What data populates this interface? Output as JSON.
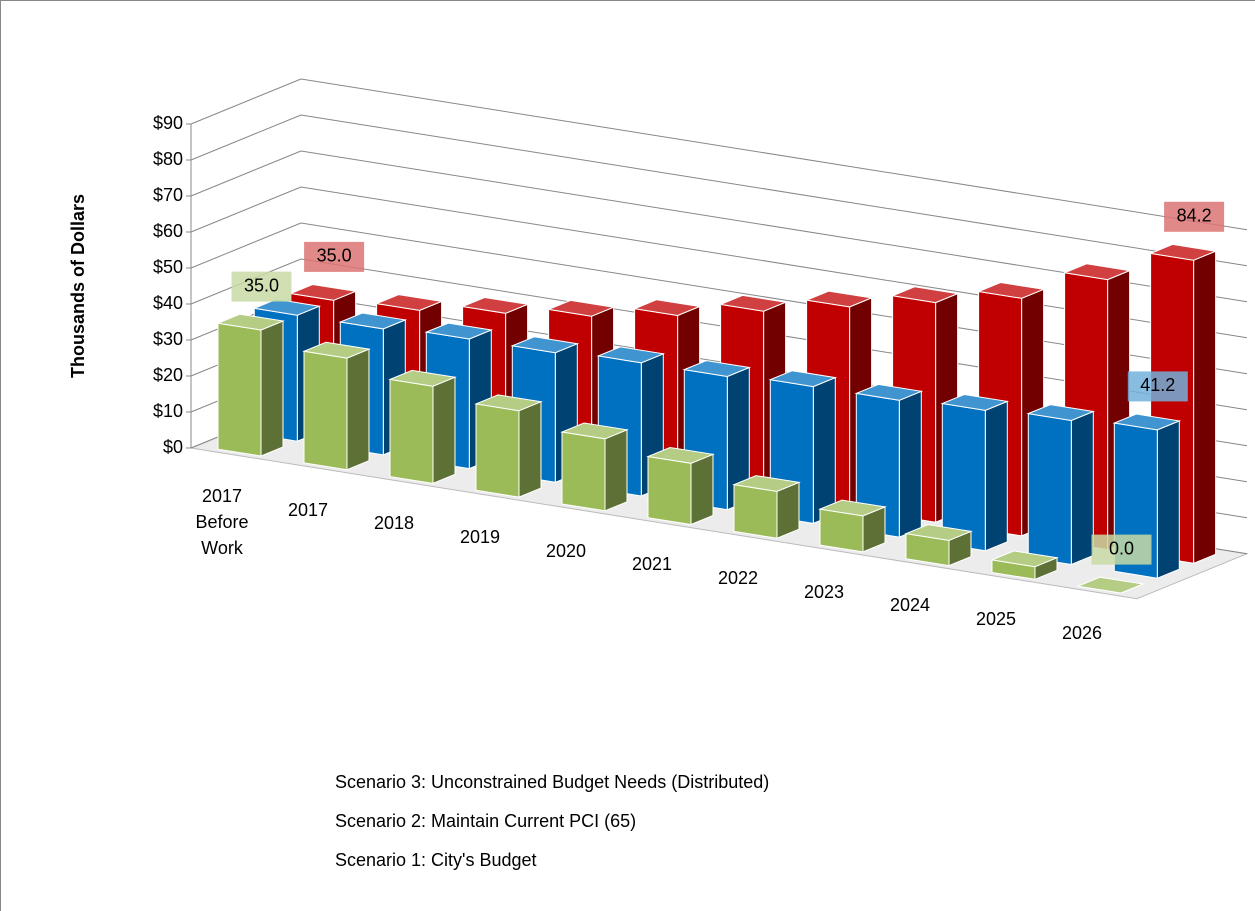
{
  "chart_data": {
    "type": "bar3d",
    "y_label": "Thousands of Dollars",
    "categories": [
      "2017 Before Work",
      "2017",
      "2018",
      "2019",
      "2020",
      "2021",
      "2022",
      "2023",
      "2024",
      "2025",
      "2026"
    ],
    "series": [
      {
        "name": "Scenario 3: Unconstrained Budget Needs (Distributed)",
        "color": "#9bbb59",
        "values": [
          35,
          31,
          27,
          24,
          20,
          17,
          13,
          10,
          7,
          3.5,
          0
        ],
        "value_labels": [
          "35.0",
          null,
          null,
          null,
          null,
          null,
          null,
          null,
          null,
          null,
          "0.0"
        ]
      },
      {
        "name": "Scenario 2: Maintain Current PCI (65)",
        "color": "#0070c0",
        "values": [
          35,
          35,
          36,
          36,
          37,
          37,
          38,
          38,
          39,
          40,
          41.2
        ],
        "value_labels": [
          null,
          null,
          null,
          null,
          null,
          null,
          null,
          null,
          null,
          null,
          "41.2"
        ]
      },
      {
        "name": "Scenario 1: City's Budget",
        "color": "#c00000",
        "values": [
          35,
          36,
          39,
          42,
          46,
          51,
          56,
          61,
          66,
          75,
          84.2
        ],
        "value_labels": [
          "35.0",
          null,
          null,
          null,
          null,
          null,
          null,
          null,
          null,
          null,
          "84.2"
        ]
      }
    ],
    "ylim": [
      0,
      90
    ],
    "yticks": [
      {
        "value": 0,
        "label": "$0"
      },
      {
        "value": 10,
        "label": "$10"
      },
      {
        "value": 20,
        "label": "$20"
      },
      {
        "value": 30,
        "label": "$30"
      },
      {
        "value": 40,
        "label": "$40"
      },
      {
        "value": 50,
        "label": "$50"
      },
      {
        "value": 60,
        "label": "$60"
      },
      {
        "value": 70,
        "label": "$70"
      },
      {
        "value": 80,
        "label": "$80"
      },
      {
        "value": 90,
        "label": "$90"
      }
    ],
    "grid": true
  }
}
